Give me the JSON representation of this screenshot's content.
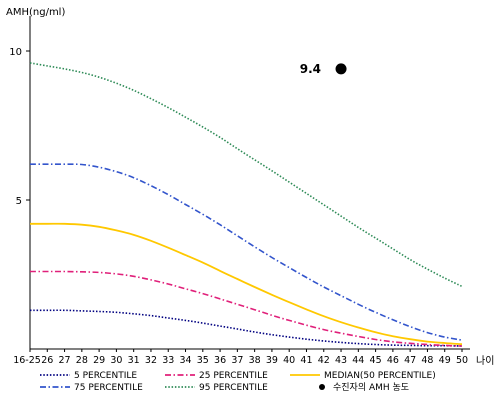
{
  "chart_data": {
    "type": "line",
    "ylabel": "AMH(ng/ml)",
    "xlabel": "나이",
    "x_categories": [
      "16-25",
      "26",
      "27",
      "28",
      "29",
      "30",
      "31",
      "32",
      "33",
      "34",
      "35",
      "36",
      "37",
      "38",
      "39",
      "40",
      "41",
      "42",
      "43",
      "44",
      "45",
      "46",
      "47",
      "48",
      "49",
      "50"
    ],
    "yticks": [
      5,
      10
    ],
    "ylim": [
      0,
      11
    ],
    "grid": false,
    "series": [
      {
        "name": "5 PERCENTILE",
        "color": "#000080",
        "dash": "dotted",
        "values": [
          1.3,
          1.3,
          1.3,
          1.28,
          1.26,
          1.23,
          1.18,
          1.12,
          1.04,
          0.96,
          0.87,
          0.77,
          0.67,
          0.57,
          0.48,
          0.4,
          0.33,
          0.27,
          0.22,
          0.18,
          0.15,
          0.13,
          0.12,
          0.11,
          0.11,
          0.1
        ]
      },
      {
        "name": "75 PERCENTILE",
        "color": "#3355CC",
        "dash": "dashdot",
        "values": [
          6.2,
          6.2,
          6.2,
          6.19,
          6.1,
          5.95,
          5.75,
          5.48,
          5.18,
          4.85,
          4.52,
          4.17,
          3.8,
          3.43,
          3.07,
          2.73,
          2.4,
          2.08,
          1.79,
          1.5,
          1.23,
          0.98,
          0.75,
          0.55,
          0.4,
          0.3
        ]
      },
      {
        "name": "25 PERCENTILE",
        "color": "#E0207A",
        "dash": "dashdot",
        "values": [
          2.6,
          2.6,
          2.6,
          2.59,
          2.57,
          2.52,
          2.44,
          2.32,
          2.18,
          2.02,
          1.86,
          1.68,
          1.5,
          1.32,
          1.13,
          0.96,
          0.8,
          0.65,
          0.53,
          0.42,
          0.32,
          0.24,
          0.19,
          0.15,
          0.12,
          0.1
        ]
      },
      {
        "name": "95 PERCENTILE",
        "color": "#2E8B57",
        "dash": "dotted",
        "values": [
          9.6,
          9.5,
          9.4,
          9.28,
          9.12,
          8.92,
          8.68,
          8.4,
          8.1,
          7.78,
          7.45,
          7.1,
          6.72,
          6.35,
          5.98,
          5.6,
          5.22,
          4.84,
          4.46,
          4.08,
          3.72,
          3.36,
          3.0,
          2.68,
          2.38,
          2.1
        ]
      },
      {
        "name": "MEDIAN(50 PERCENTILE)",
        "color": "#FFC800",
        "dash": "solid",
        "values": [
          4.2,
          4.2,
          4.2,
          4.17,
          4.1,
          3.98,
          3.83,
          3.63,
          3.4,
          3.15,
          2.9,
          2.62,
          2.35,
          2.08,
          1.82,
          1.57,
          1.33,
          1.1,
          0.9,
          0.72,
          0.56,
          0.43,
          0.33,
          0.25,
          0.2,
          0.16
        ]
      }
    ],
    "points": [
      {
        "name": "수진자의 AMH 농도",
        "x": "43",
        "y": 9.4,
        "label": "9.4",
        "color": "#000000"
      }
    ],
    "legend": {
      "placement": "bottom",
      "items": [
        {
          "label": "5 PERCENTILE",
          "color": "#000080",
          "dash": "dotted"
        },
        {
          "label": "25 PERCENTILE",
          "color": "#E0207A",
          "dash": "dashdot"
        },
        {
          "label": "MEDIAN(50 PERCENTILE)",
          "color": "#FFC800",
          "dash": "solid"
        },
        {
          "label": "75 PERCENTILE",
          "color": "#3355CC",
          "dash": "dashdot"
        },
        {
          "label": "95 PERCENTILE",
          "color": "#2E8B57",
          "dash": "dotted"
        },
        {
          "label": "수진자의 AMH 농도",
          "color": "#000000",
          "dash": "marker"
        }
      ]
    }
  }
}
